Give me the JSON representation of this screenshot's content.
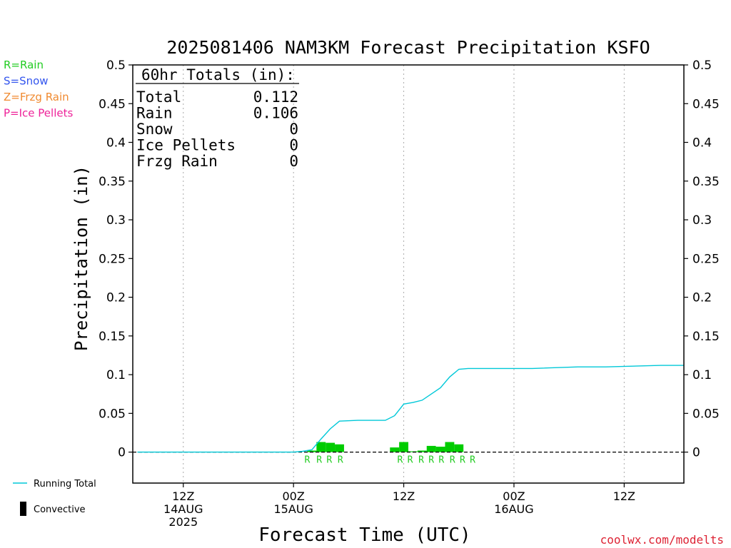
{
  "chart_data": {
    "type": "bar",
    "title": "2025081406 NAM3KM Forecast Precipitation KSFO",
    "ylabel": "Precipitation (in)",
    "xlabel": "Forecast Time (UTC)",
    "ylim": [
      -0.04,
      0.5
    ],
    "xlim_hours": [
      -5.5,
      54.5
    ],
    "yticks": [
      0,
      0.05,
      0.1,
      0.15,
      0.2,
      0.25,
      0.3,
      0.35,
      0.4,
      0.45,
      0.5
    ],
    "ytick_labels": [
      "0",
      "0.05",
      "0.1",
      "0.15",
      "0.2",
      "0.25",
      "0.3",
      "0.35",
      "0.4",
      "0.45",
      "0.5"
    ],
    "xticks": [
      {
        "hour": 0,
        "lines": [
          "12Z",
          "14AUG",
          "2025"
        ]
      },
      {
        "hour": 12,
        "lines": [
          "00Z",
          "15AUG"
        ]
      },
      {
        "hour": 24,
        "lines": [
          "12Z",
          ""
        ]
      },
      {
        "hour": 36,
        "lines": [
          "00Z",
          "16AUG"
        ]
      },
      {
        "hour": 48,
        "lines": [
          "12Z",
          ""
        ]
      }
    ],
    "grid": "vertical dotted",
    "legend_types": [
      {
        "label": "R=Rain",
        "color": "#22cc22"
      },
      {
        "label": "S=Snow",
        "color": "#3355ee"
      },
      {
        "label": "Z=Frzg Rain",
        "color": "#f08a30"
      },
      {
        "label": "P=Ice Pellets",
        "color": "#ee2299"
      }
    ],
    "legend_series": [
      {
        "label": "Running Total",
        "color": "#00c8d8"
      },
      {
        "label": "Convective",
        "color": "#000000"
      }
    ],
    "totals": {
      "header": "60hr Totals (in):",
      "rows": [
        {
          "label": "Total",
          "value": "0.112"
        },
        {
          "label": "Rain",
          "value": "0.106"
        },
        {
          "label": "Snow",
          "value": "0"
        },
        {
          "label": "Ice Pellets",
          "value": "0"
        },
        {
          "label": "Frzg Rain",
          "value": "0"
        }
      ]
    },
    "bars": [
      {
        "hour": 14.0,
        "value": 0.002,
        "type": "R"
      },
      {
        "hour": 15.0,
        "value": 0.013,
        "type": "R"
      },
      {
        "hour": 16.0,
        "value": 0.012,
        "type": "R"
      },
      {
        "hour": 17.0,
        "value": 0.01,
        "type": "R"
      },
      {
        "hour": 23.0,
        "value": 0.006,
        "type": "R"
      },
      {
        "hour": 24.0,
        "value": 0.013,
        "type": "R"
      },
      {
        "hour": 25.0,
        "value": 0.001,
        "type": "R"
      },
      {
        "hour": 26.0,
        "value": 0.002,
        "type": "R"
      },
      {
        "hour": 27.0,
        "value": 0.008,
        "type": "R"
      },
      {
        "hour": 28.0,
        "value": 0.007,
        "type": "R"
      },
      {
        "hour": 29.0,
        "value": 0.013,
        "type": "R"
      },
      {
        "hour": 30.0,
        "value": 0.01,
        "type": "R"
      }
    ],
    "precip_marks": [
      {
        "hour": 13.5,
        "label": "R"
      },
      {
        "hour": 14.8,
        "label": "R"
      },
      {
        "hour": 15.9,
        "label": "R"
      },
      {
        "hour": 17.1,
        "label": "R"
      },
      {
        "hour": 23.6,
        "label": "R"
      },
      {
        "hour": 24.7,
        "label": "R"
      },
      {
        "hour": 25.9,
        "label": "R"
      },
      {
        "hour": 27.0,
        "label": "R"
      },
      {
        "hour": 28.1,
        "label": "R"
      },
      {
        "hour": 29.3,
        "label": "R"
      },
      {
        "hour": 30.4,
        "label": "R"
      },
      {
        "hour": 31.5,
        "label": "R"
      }
    ],
    "running_total": [
      {
        "hour": -5,
        "value": 0
      },
      {
        "hour": 12,
        "value": 0
      },
      {
        "hour": 13,
        "value": 0.001
      },
      {
        "hour": 14,
        "value": 0.003
      },
      {
        "hour": 15,
        "value": 0.017
      },
      {
        "hour": 16,
        "value": 0.03
      },
      {
        "hour": 17,
        "value": 0.04
      },
      {
        "hour": 19,
        "value": 0.041
      },
      {
        "hour": 21,
        "value": 0.041
      },
      {
        "hour": 22,
        "value": 0.041
      },
      {
        "hour": 23,
        "value": 0.047
      },
      {
        "hour": 24,
        "value": 0.062
      },
      {
        "hour": 25,
        "value": 0.064
      },
      {
        "hour": 26,
        "value": 0.067
      },
      {
        "hour": 28,
        "value": 0.083
      },
      {
        "hour": 29,
        "value": 0.097
      },
      {
        "hour": 30,
        "value": 0.107
      },
      {
        "hour": 31,
        "value": 0.108
      },
      {
        "hour": 36,
        "value": 0.108
      },
      {
        "hour": 38,
        "value": 0.108
      },
      {
        "hour": 43,
        "value": 0.11
      },
      {
        "hour": 46,
        "value": 0.11
      },
      {
        "hour": 52,
        "value": 0.112
      },
      {
        "hour": 54.5,
        "value": 0.112
      }
    ],
    "colors": {
      "bar": "#00cc00",
      "running_total": "#00c8d8",
      "rain_mark": "#22cc22",
      "zero_line": "#000000"
    }
  },
  "footer": {
    "credit": "coolwx.com/modelts",
    "credit_color": "#dd2233"
  }
}
